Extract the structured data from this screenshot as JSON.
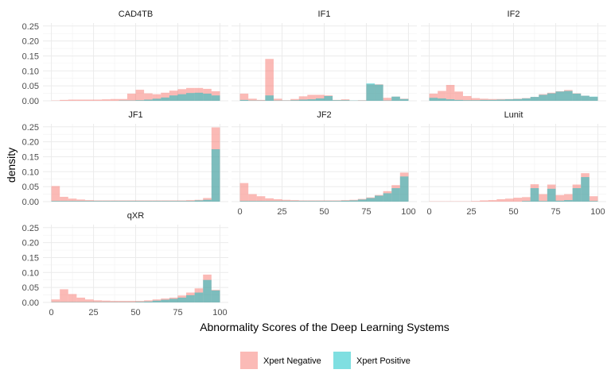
{
  "chart_data": {
    "type": "histogram",
    "xlabel": "Abnormality Scores of the Deep Learning Systems",
    "ylabel": "density",
    "xlim": [
      -5,
      105
    ],
    "ylim": [
      0,
      0.26
    ],
    "xticks": [
      0,
      25,
      50,
      75,
      100
    ],
    "yticks": [
      0,
      0.05,
      0.1,
      0.15,
      0.2,
      0.25
    ],
    "ytick_labels": [
      "0.00",
      "0.05",
      "0.10",
      "0.15",
      "0.20",
      "0.25"
    ],
    "bin_width": 5,
    "bin_starts": [
      0,
      5,
      10,
      15,
      20,
      25,
      30,
      35,
      40,
      45,
      50,
      55,
      60,
      65,
      70,
      75,
      80,
      85,
      90,
      95
    ],
    "colors": {
      "Xpert Negative": "#F8766D",
      "Xpert Positive": "#00BFC4"
    },
    "grid": true,
    "legend_position": "bottom",
    "legend": [
      "Xpert Negative",
      "Xpert Positive"
    ],
    "panels": [
      {
        "name": "CAD4TB",
        "negative": [
          0.001,
          0.003,
          0.004,
          0.004,
          0.004,
          0.004,
          0.005,
          0.006,
          0.006,
          0.024,
          0.037,
          0.025,
          0.022,
          0.027,
          0.034,
          0.039,
          0.043,
          0.043,
          0.04,
          0.032
        ],
        "positive": [
          0,
          0,
          0,
          0,
          0,
          0,
          0,
          0,
          0.001,
          0.001,
          0.002,
          0.004,
          0.007,
          0.011,
          0.018,
          0.022,
          0.026,
          0.027,
          0.024,
          0.018
        ]
      },
      {
        "name": "IF1",
        "negative": [
          0.024,
          0.007,
          0.003,
          0.14,
          0.007,
          0.002,
          0.006,
          0.015,
          0.02,
          0.02,
          0.018,
          0.003,
          0.005,
          0.001,
          0.002,
          0.055,
          0.055,
          0.01,
          0.014,
          0.007
        ],
        "positive": [
          0.003,
          0.001,
          0.001,
          0.018,
          0.001,
          0.001,
          0.002,
          0.004,
          0.005,
          0.008,
          0.016,
          0.002,
          0.002,
          0.001,
          0.001,
          0.058,
          0.054,
          0.001,
          0.014,
          0.006
        ]
      },
      {
        "name": "IF2",
        "negative": [
          0.024,
          0.033,
          0.053,
          0.031,
          0.016,
          0.009,
          0.007,
          0.006,
          0.006,
          0.006,
          0.007,
          0.009,
          0.013,
          0.022,
          0.027,
          0.032,
          0.036,
          0.025,
          0.017,
          0.013
        ],
        "positive": [
          0.01,
          0.008,
          0.005,
          0.003,
          0.002,
          0.002,
          0.003,
          0.003,
          0.004,
          0.005,
          0.006,
          0.008,
          0.013,
          0.02,
          0.025,
          0.031,
          0.033,
          0.024,
          0.017,
          0.014
        ]
      },
      {
        "name": "JF1",
        "negative": [
          0.052,
          0.016,
          0.01,
          0.007,
          0.005,
          0.004,
          0.004,
          0.004,
          0.004,
          0.004,
          0.004,
          0.004,
          0.004,
          0.004,
          0.004,
          0.004,
          0.005,
          0.006,
          0.012,
          0.248
        ],
        "positive": [
          0.002,
          0.002,
          0.002,
          0.002,
          0.002,
          0.002,
          0.002,
          0.002,
          0.002,
          0.002,
          0.002,
          0.002,
          0.002,
          0.002,
          0.002,
          0.002,
          0.002,
          0.004,
          0.006,
          0.175
        ]
      },
      {
        "name": "JF2",
        "negative": [
          0.062,
          0.025,
          0.018,
          0.011,
          0.008,
          0.006,
          0.005,
          0.004,
          0.004,
          0.004,
          0.004,
          0.004,
          0.005,
          0.006,
          0.009,
          0.014,
          0.022,
          0.035,
          0.055,
          0.097
        ],
        "positive": [
          0.002,
          0.002,
          0.002,
          0.002,
          0.002,
          0.002,
          0.002,
          0.002,
          0.002,
          0.002,
          0.002,
          0.002,
          0.003,
          0.004,
          0.007,
          0.012,
          0.02,
          0.028,
          0.045,
          0.084
        ]
      },
      {
        "name": "Lunit",
        "negative": [
          0.001,
          0.001,
          0.001,
          0.001,
          0.001,
          0.002,
          0.004,
          0.005,
          0.008,
          0.01,
          0.013,
          0.015,
          0.058,
          0.025,
          0.057,
          0.022,
          0.025,
          0.057,
          0.095,
          0.018
        ],
        "positive": [
          0,
          0,
          0,
          0,
          0,
          0,
          0,
          0,
          0,
          0,
          0,
          0.002,
          0.045,
          0.002,
          0.043,
          0.003,
          0.005,
          0.045,
          0.082,
          0.002
        ]
      },
      {
        "name": "qXR",
        "negative": [
          0.01,
          0.044,
          0.028,
          0.016,
          0.01,
          0.007,
          0.006,
          0.005,
          0.005,
          0.005,
          0.005,
          0.007,
          0.01,
          0.013,
          0.016,
          0.023,
          0.033,
          0.047,
          0.093,
          0.042
        ],
        "positive": [
          0.001,
          0.001,
          0.001,
          0.001,
          0.001,
          0.001,
          0.001,
          0.001,
          0.001,
          0.001,
          0.002,
          0.003,
          0.006,
          0.009,
          0.012,
          0.016,
          0.024,
          0.033,
          0.075,
          0.04
        ]
      }
    ]
  }
}
